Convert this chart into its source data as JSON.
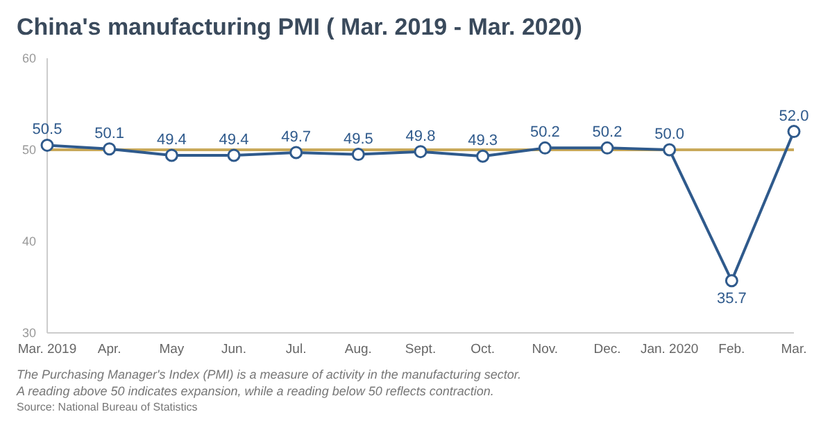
{
  "chart_data": {
    "type": "line",
    "title": "China's manufacturing PMI ( Mar. 2019 - Mar. 2020)",
    "categories": [
      "Mar. 2019",
      "Apr.",
      "May",
      "Jun.",
      "Jul.",
      "Aug.",
      "Sept.",
      "Oct.",
      "Nov.",
      "Dec.",
      "Jan. 2020",
      "Feb.",
      "Mar."
    ],
    "series": [
      {
        "color": "#2f5a8c",
        "values": [
          50.5,
          50.1,
          49.4,
          49.4,
          49.7,
          49.5,
          49.8,
          49.3,
          50.2,
          50.2,
          50.0,
          35.7,
          52.0
        ],
        "value_labels": [
          "50.5",
          "50.1",
          "49.4",
          "49.4",
          "49.7",
          "49.5",
          "49.8",
          "49.3",
          "50.2",
          "50.2",
          "50.0",
          "35.7",
          "52.0"
        ]
      }
    ],
    "ylim": [
      30,
      60
    ],
    "yticks": [
      30,
      40,
      50,
      60
    ],
    "marker": "circle",
    "ref_lines": [
      {
        "axis": "y",
        "value": 50,
        "color": "#c9a95a"
      }
    ],
    "annotations": [
      "The Purchasing Manager's Index (PMI) is a measure of activity in the manufacturing sector.",
      "A reading above 50 indicates expansion, while a reading below 50 reflects contraction.",
      "Source: National Bureau of Statistics"
    ]
  }
}
